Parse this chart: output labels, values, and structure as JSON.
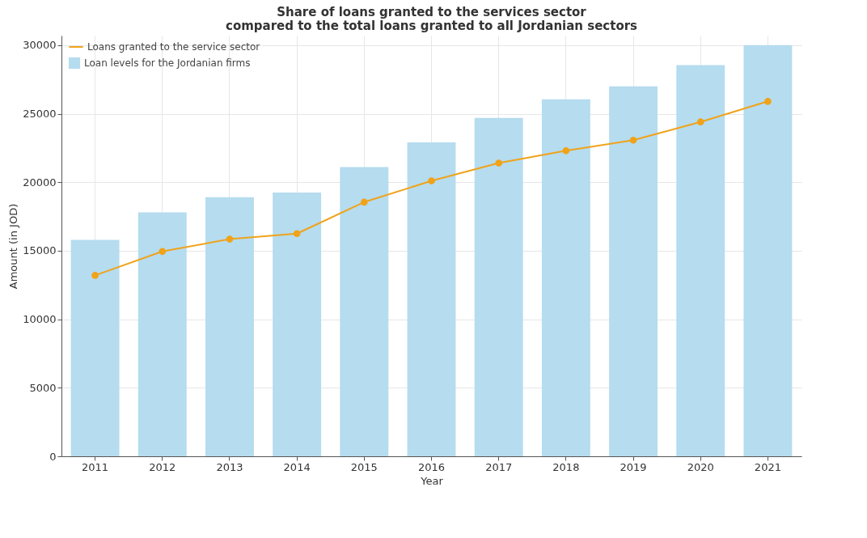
{
  "chart_data": {
    "type": "bar",
    "title": "Share of loans granted to the services sector\ncompared to the total loans granted to all Jordanian sectors",
    "xlabel": "Year",
    "ylabel": "Amount (in JOD)",
    "categories": [
      "2011",
      "2012",
      "2013",
      "2014",
      "2015",
      "2016",
      "2017",
      "2018",
      "2019",
      "2020",
      "2021"
    ],
    "series": [
      {
        "name": "Loans granted to the service sector",
        "type": "line",
        "color": "#f0a31a",
        "values": [
          13200,
          14950,
          15850,
          16250,
          18550,
          20100,
          21400,
          22300,
          23070,
          24400,
          25900
        ]
      },
      {
        "name": "Loan levels for the Jordanian firms",
        "color": "#b5dcef",
        "values": [
          15800,
          17800,
          18900,
          19250,
          21100,
          22900,
          24700,
          26050,
          27000,
          28550,
          30000
        ]
      }
    ],
    "ylim": [
      0,
      30700
    ],
    "yticks": [
      0,
      5000,
      10000,
      15000,
      20000,
      25000,
      30000
    ],
    "grid": true,
    "legend": "top left",
    "marker": "circle"
  }
}
